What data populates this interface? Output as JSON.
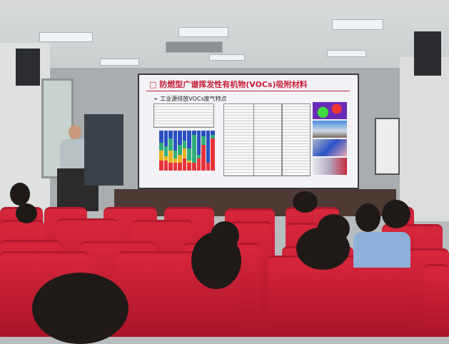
{
  "slide": {
    "title": "□ 防燃型广谱挥发性有机物(VOCs)吸附材料",
    "subtitle": "➢ 工业源排放VOCs废气特点",
    "accent_color": "#c8213a"
  },
  "scene": {
    "chair_color": "#c41e35"
  }
}
